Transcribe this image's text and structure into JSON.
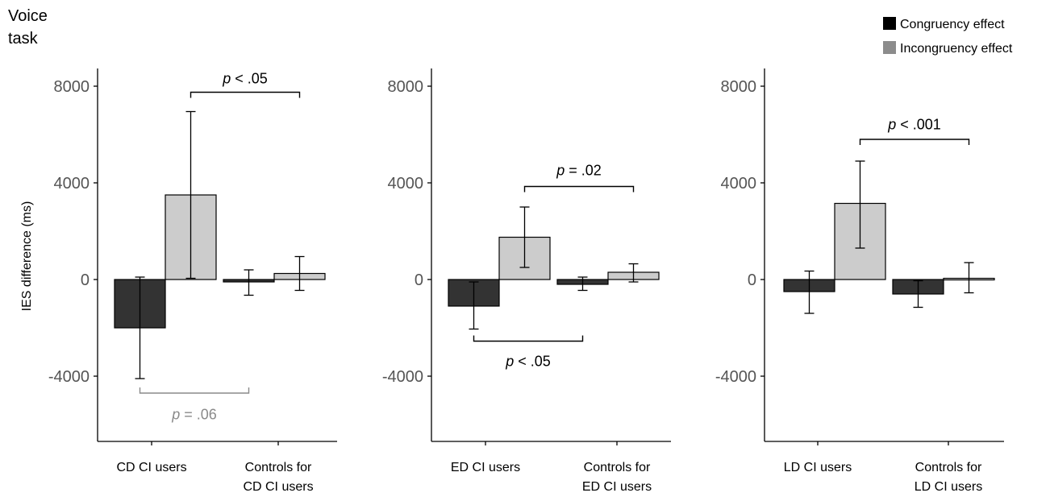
{
  "figure": {
    "title_line1": "Voice",
    "title_line2": "task",
    "ylabel": "IES difference  (ms)",
    "legend": [
      {
        "label": "Congruency effect",
        "color": "#000000"
      },
      {
        "label": "Incongruency effect",
        "color": "#8c8c8c"
      }
    ]
  },
  "colors": {
    "congruency_bar": "#333333",
    "incongruency_bar": "#cccccc",
    "axis": "#000000",
    "tick_text": "#555555",
    "bracket_gray": "#8a8a8a"
  },
  "chart_data": [
    {
      "type": "bar",
      "ylim": [
        -6700,
        8700
      ],
      "yticks": [
        "8000",
        "4000",
        "0",
        "-4000"
      ],
      "ytick_values": [
        8000,
        4000,
        0,
        -4000
      ],
      "categories": [
        [
          "CD CI users"
        ],
        [
          "Controls for",
          "CD CI users"
        ]
      ],
      "series": [
        {
          "name": "Congruency effect",
          "values": [
            -2000,
            -100
          ],
          "err_low": [
            -4100,
            -650
          ],
          "err_high": [
            100,
            400
          ]
        },
        {
          "name": "Incongruency effect",
          "values": [
            3500,
            250
          ],
          "err_low": [
            50,
            -450
          ],
          "err_high": [
            6950,
            950
          ]
        }
      ],
      "brackets": [
        {
          "label_italic": "p",
          "label_rest": " < .05",
          "from": [
            0,
            1
          ],
          "to": [
            1,
            1
          ],
          "y": 7750,
          "dir": "down",
          "label_y": 8350,
          "gray": false
        },
        {
          "label_italic": "p",
          "label_rest": " = .06",
          "from": [
            0,
            0
          ],
          "to": [
            1,
            0
          ],
          "y": -4700,
          "dir": "up",
          "label_y": -5550,
          "gray": true
        }
      ]
    },
    {
      "type": "bar",
      "ylim": [
        -6700,
        8700
      ],
      "yticks": [
        "8000",
        "4000",
        "0",
        "-4000"
      ],
      "ytick_values": [
        8000,
        4000,
        0,
        -4000
      ],
      "categories": [
        [
          "ED CI users"
        ],
        [
          "Controls for",
          "ED CI users"
        ]
      ],
      "series": [
        {
          "name": "Congruency effect",
          "values": [
            -1100,
            -200
          ],
          "err_low": [
            -2050,
            -450
          ],
          "err_high": [
            -100,
            100
          ]
        },
        {
          "name": "Incongruency effect",
          "values": [
            1750,
            300
          ],
          "err_low": [
            500,
            -100
          ],
          "err_high": [
            3000,
            650
          ]
        }
      ],
      "brackets": [
        {
          "label_italic": "p",
          "label_rest": " = .02",
          "from": [
            0,
            1
          ],
          "to": [
            1,
            1
          ],
          "y": 3850,
          "dir": "down",
          "label_y": 4550,
          "gray": false
        },
        {
          "label_italic": "p",
          "label_rest": " < .05",
          "from": [
            0,
            0
          ],
          "to": [
            1,
            0
          ],
          "y": -2550,
          "dir": "up",
          "label_y": -3350,
          "gray": false
        }
      ]
    },
    {
      "type": "bar",
      "ylim": [
        -6700,
        8700
      ],
      "yticks": [
        "8000",
        "4000",
        "0",
        "-4000"
      ],
      "ytick_values": [
        8000,
        4000,
        0,
        -4000
      ],
      "categories": [
        [
          "LD CI users"
        ],
        [
          "Controls for",
          "LD CI users"
        ]
      ],
      "series": [
        {
          "name": "Congruency effect",
          "values": [
            -500,
            -600
          ],
          "err_low": [
            -1400,
            -1150
          ],
          "err_high": [
            350,
            -50
          ]
        },
        {
          "name": "Incongruency effect",
          "values": [
            3150,
            50
          ],
          "err_low": [
            1300,
            -550
          ],
          "err_high": [
            4900,
            700
          ]
        }
      ],
      "brackets": [
        {
          "label_italic": "p",
          "label_rest": " < .001",
          "from": [
            0,
            1
          ],
          "to": [
            1,
            1
          ],
          "y": 5800,
          "dir": "down",
          "label_y": 6450,
          "gray": false
        }
      ]
    }
  ]
}
